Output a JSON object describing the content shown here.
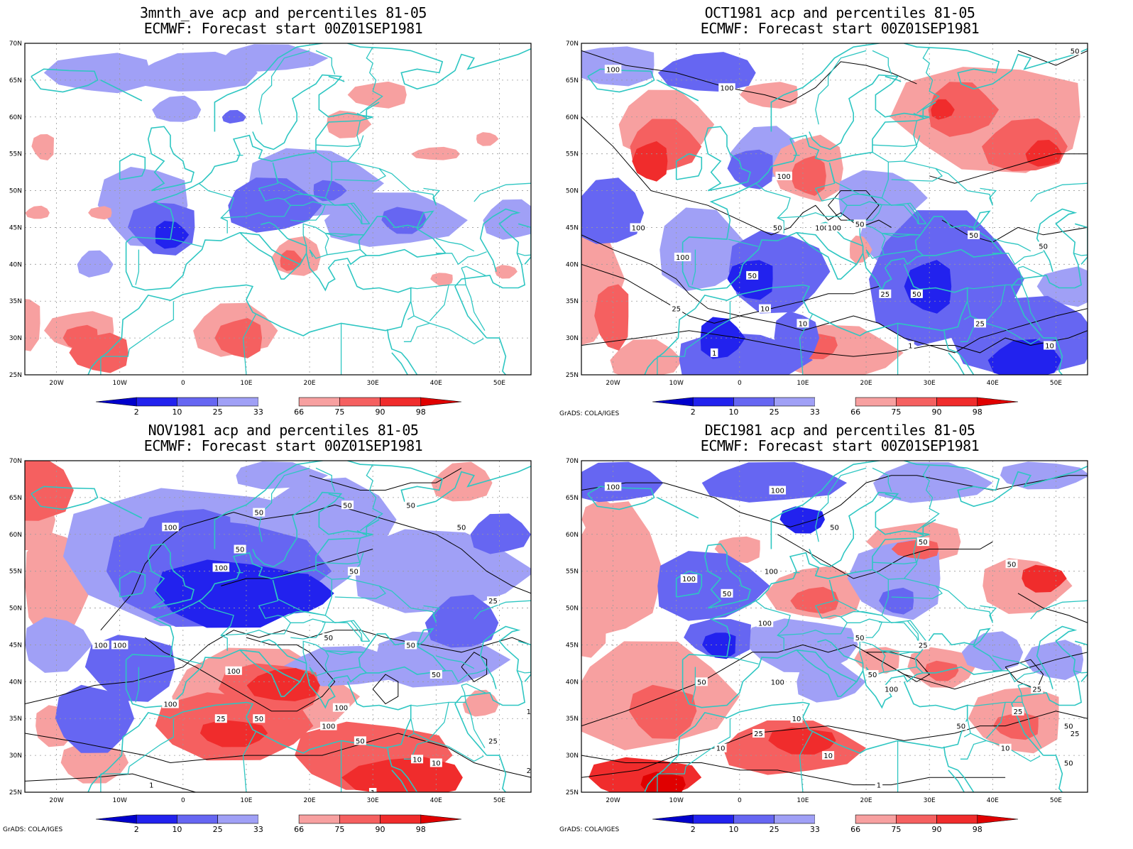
{
  "panels": [
    {
      "title1": "3mnth_ave acp and percentiles 81-05",
      "title2": "ECMWF: Forecast start 00Z01SEP1981",
      "credit": "",
      "contour_labels": []
    },
    {
      "title1": "OCT1981 acp and percentiles 81-05",
      "title2": "ECMWF: Forecast start 00Z01SEP1981",
      "credit": "GrADS: COLA/IGES",
      "contour_labels": [
        "100",
        "100",
        "50",
        "100",
        "50",
        "100",
        "100",
        "50",
        "100",
        "100",
        "50",
        "50",
        "25",
        "10",
        "50",
        "50",
        "25",
        "25",
        "10",
        "1",
        "1",
        "10"
      ]
    },
    {
      "title1": "NOV1981 acp and percentiles 81-05",
      "title2": "ECMWF: Forecast start 00Z01SEP1981",
      "credit": "GrADS: COLA/IGES",
      "contour_labels": [
        "50",
        "50",
        "50",
        "50",
        "100",
        "50",
        "100",
        "50",
        "25",
        "100",
        "100",
        "50",
        "50",
        "100",
        "50",
        "100",
        "50",
        "100",
        "25",
        "100",
        "10",
        "50",
        "25",
        "10",
        "1",
        "1",
        "25",
        "10"
      ]
    },
    {
      "title1": "DEC1981 acp and percentiles 81-05",
      "title2": "ECMWF: Forecast start 00Z01SEP1981",
      "credit": "GrADS: COLA/IGES",
      "contour_labels": [
        "100",
        "100",
        "50",
        "50",
        "50",
        "100",
        "100",
        "50",
        "100",
        "50",
        "25",
        "50",
        "100",
        "50",
        "100",
        "25",
        "10",
        "25",
        "10",
        "50",
        "25",
        "50",
        "10",
        "1",
        "10",
        "25",
        "50"
      ]
    }
  ],
  "map": {
    "lat_labels": [
      "70N",
      "65N",
      "60N",
      "55N",
      "50N",
      "45N",
      "40N",
      "35N",
      "30N",
      "25N"
    ],
    "lon_labels": [
      "20W",
      "10W",
      "0",
      "10E",
      "20E",
      "30E",
      "40E",
      "50E"
    ],
    "colors": {
      "below2": "#0000cc",
      "p2_10": "#2222ee",
      "p10_25": "#6666f2",
      "p25_33": "#a0a0f6",
      "p66_75": "#f7a0a0",
      "p75_90": "#f56060",
      "p90_98": "#f02c2c",
      "above98": "#e00000",
      "coast": "#2ec6c2",
      "contour": "#000000"
    }
  },
  "legend": {
    "labels": [
      "2",
      "10",
      "25",
      "33",
      "66",
      "75",
      "90",
      "98"
    ],
    "colors": [
      "#0000cc",
      "#2222ee",
      "#6666f2",
      "#a0a0f6",
      "#ffffff",
      "#f7a0a0",
      "#f56060",
      "#f02c2c",
      "#e00000"
    ]
  }
}
